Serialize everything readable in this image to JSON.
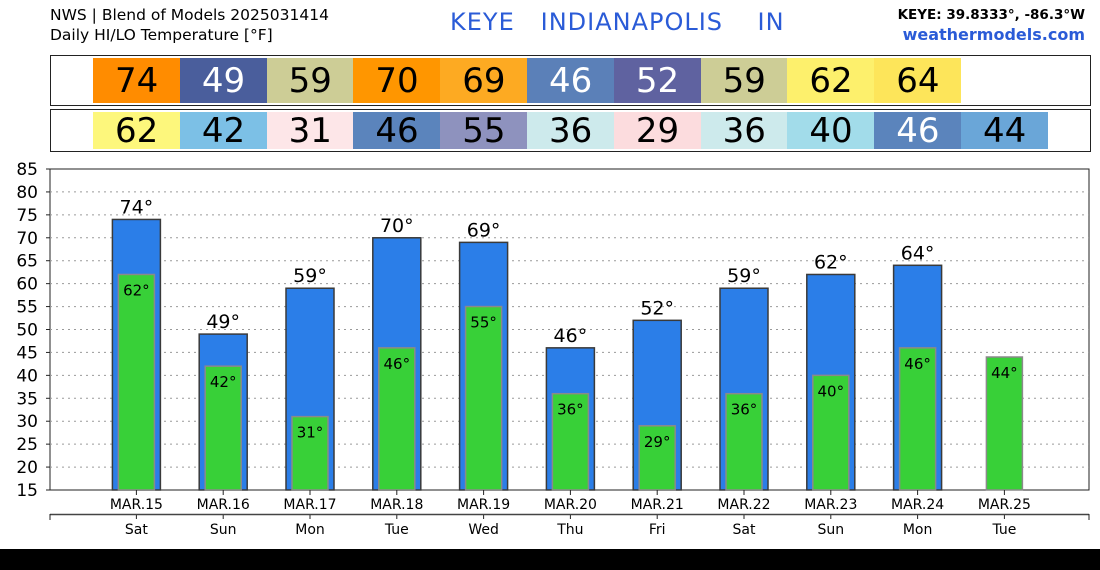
{
  "header": {
    "line1": "NWS | Blend of Models 2025031414",
    "line2": "Daily HI/LO Temperature [°F]",
    "title": "KEYE   INDIANAPOLIS    IN",
    "coords": "KEYE: 39.8333°, -86.3°W",
    "site": "weathermodels.com"
  },
  "hi_strip": [
    {
      "value": "74",
      "color": "#ff8c00",
      "dark": false
    },
    {
      "value": "49",
      "color": "#4a5e9c",
      "dark": true
    },
    {
      "value": "59",
      "color": "#cdcd96",
      "dark": false
    },
    {
      "value": "70",
      "color": "#ff9600",
      "dark": false
    },
    {
      "value": "69",
      "color": "#fdaa22",
      "dark": false
    },
    {
      "value": "46",
      "color": "#5b80b8",
      "dark": true
    },
    {
      "value": "52",
      "color": "#5f62a0",
      "dark": true
    },
    {
      "value": "59",
      "color": "#cdcd96",
      "dark": false
    },
    {
      "value": "62",
      "color": "#fdf06c",
      "dark": false
    },
    {
      "value": "64",
      "color": "#fde55a",
      "dark": false
    }
  ],
  "lo_strip": [
    {
      "value": "62",
      "color": "#fdf77c",
      "dark": false
    },
    {
      "value": "42",
      "color": "#7cc0e6",
      "dark": false
    },
    {
      "value": "31",
      "color": "#fde6e8",
      "dark": false
    },
    {
      "value": "46",
      "color": "#5b84bc",
      "dark": false
    },
    {
      "value": "55",
      "color": "#8e92be",
      "dark": false
    },
    {
      "value": "36",
      "color": "#cdeaec",
      "dark": false
    },
    {
      "value": "29",
      "color": "#fcdcde",
      "dark": false
    },
    {
      "value": "36",
      "color": "#cdeaec",
      "dark": false
    },
    {
      "value": "40",
      "color": "#a2dcea",
      "dark": false
    },
    {
      "value": "46",
      "color": "#5b84bc",
      "dark": true
    },
    {
      "value": "44",
      "color": "#6aa6d8",
      "dark": false
    }
  ],
  "chart_data": {
    "type": "bar",
    "ylim": [
      15,
      85
    ],
    "yticks": [
      "15",
      "20",
      "25",
      "30",
      "35",
      "40",
      "45",
      "50",
      "55",
      "60",
      "65",
      "70",
      "75",
      "80",
      "85"
    ],
    "grid": true,
    "categories": [
      "MAR.15",
      "MAR.16",
      "MAR.17",
      "MAR.18",
      "MAR.19",
      "MAR.20",
      "MAR.21",
      "MAR.22",
      "MAR.23",
      "MAR.24",
      "MAR.25"
    ],
    "days": [
      "Sat",
      "Sun",
      "Mon",
      "Tue",
      "Wed",
      "Thu",
      "Fri",
      "Sat",
      "Sun",
      "Mon",
      "Tue"
    ],
    "series": [
      {
        "values": [
          74,
          49,
          59,
          70,
          69,
          46,
          52,
          59,
          62,
          64,
          null
        ],
        "labels": [
          "74°",
          "49°",
          "59°",
          "70°",
          "69°",
          "46°",
          "52°",
          "59°",
          "62°",
          "64°",
          ""
        ],
        "color": "#2b7ee8"
      },
      {
        "values": [
          62,
          42,
          31,
          46,
          55,
          36,
          29,
          36,
          40,
          46,
          44
        ],
        "labels": [
          "62°",
          "42°",
          "31°",
          "46°",
          "55°",
          "36°",
          "29°",
          "36°",
          "40°",
          "46°",
          "44°"
        ],
        "color": "#38d038"
      }
    ]
  }
}
